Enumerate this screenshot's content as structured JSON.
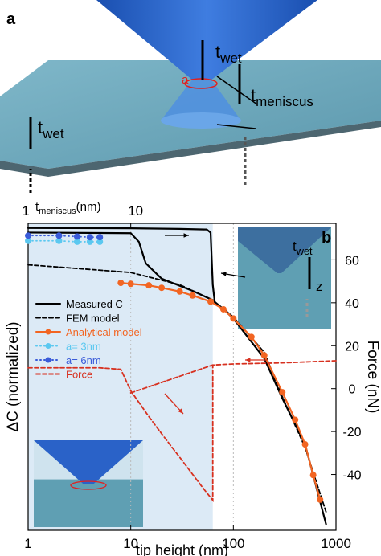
{
  "panel_labels": [
    "a",
    "b"
  ],
  "illustration": {
    "annotations": [
      {
        "text": "t",
        "sub": "wet"
      },
      {
        "text": "t",
        "sub": "meniscus"
      },
      {
        "text": "a"
      },
      {
        "text": "t",
        "sub": "wet"
      }
    ]
  },
  "inset": {
    "annotations": [
      {
        "text": "t",
        "sub": "wet"
      },
      {
        "text": "z"
      }
    ]
  },
  "chart_data": {
    "type": "line",
    "log_x": true,
    "xlabel": "tip height (nm)",
    "ylabel": "ΔC (normalized)",
    "y2label": "Force (nN)",
    "x2label": {
      "text": "t",
      "sub": "meniscus",
      "suffix": "(nm)"
    },
    "xlim": [
      1,
      1000
    ],
    "xticks": [
      1,
      10,
      100,
      1000
    ],
    "x2ticks": [
      1,
      10
    ],
    "ylim": [
      0,
      1
    ],
    "y2lim": [
      -66,
      77
    ],
    "y2ticks": [
      -40,
      -20,
      0,
      20,
      40,
      60
    ],
    "grid": true,
    "shaded_region": [
      1,
      63
    ],
    "series": [
      {
        "name": "Measured C",
        "color": "#000000",
        "style": "solid",
        "x": [
          1,
          10,
          30,
          55,
          60,
          63,
          66,
          80,
          100,
          200,
          300,
          500,
          800,
          null,
          1,
          10,
          12,
          14,
          20,
          40,
          63
        ],
        "values": [
          0.985,
          0.984,
          0.982,
          0.98,
          0.97,
          0.8,
          0.74,
          0.72,
          0.69,
          0.56,
          0.43,
          0.28,
          0.02,
          null,
          0.97,
          0.968,
          0.94,
          0.87,
          0.82,
          0.78,
          0.75
        ]
      },
      {
        "name": "FEM model",
        "color": "#000000",
        "style": "dashed",
        "x": [
          1,
          10,
          30,
          63,
          100,
          200,
          300,
          500,
          800
        ],
        "values": [
          0.865,
          0.84,
          0.8,
          0.75,
          0.695,
          0.58,
          0.435,
          0.27,
          0.06
        ]
      },
      {
        "name": "Analytical model",
        "color": "#f26522",
        "style": "solid",
        "marker": true,
        "x": [
          8,
          10,
          15,
          20,
          30,
          40,
          60,
          80,
          100,
          150,
          200,
          300,
          400,
          500,
          600,
          700
        ],
        "values": [
          0.806,
          0.803,
          0.798,
          0.79,
          0.778,
          0.765,
          0.745,
          0.72,
          0.69,
          0.63,
          0.57,
          0.45,
          0.36,
          0.28,
          0.18,
          0.1
        ]
      },
      {
        "name": "a= 3nm",
        "color": "#5bc8f0",
        "style": "dotted",
        "marker": true,
        "x": [
          1,
          2,
          3,
          4,
          5
        ],
        "values": [
          0.943,
          0.943,
          0.94,
          0.94,
          0.94
        ]
      },
      {
        "name": "a= 6nm",
        "color": "#3a5bd9",
        "style": "dotted",
        "marker": true,
        "x": [
          1,
          2,
          3,
          4,
          5
        ],
        "values": [
          0.96,
          0.96,
          0.957,
          0.955,
          0.955
        ]
      },
      {
        "name": "Force",
        "color": "#d7301f",
        "style": "dashed",
        "axis": "y2",
        "x": [
          1,
          5,
          8,
          10,
          15,
          20,
          30,
          50,
          63,
          63,
          100,
          300,
          1000,
          null,
          10,
          63
        ],
        "values": [
          9.7,
          9.7,
          9,
          -1,
          -13,
          -21,
          -32,
          -46,
          -52,
          11,
          11.5,
          12,
          13,
          null,
          -2,
          11
        ]
      }
    ]
  }
}
